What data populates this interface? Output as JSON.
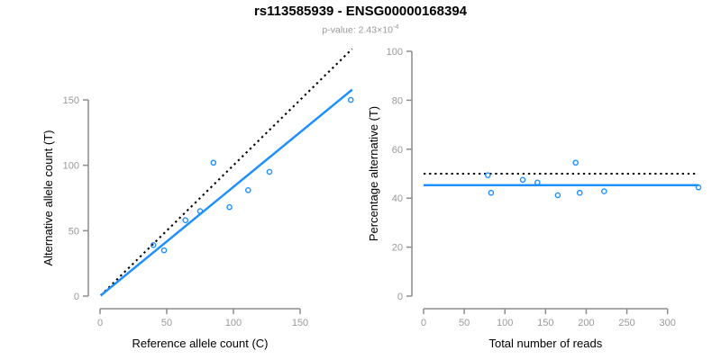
{
  "header": {
    "title": "rs113585939 - ENSG00000168394",
    "subtitle_prefix": "p-value: 2.43×10",
    "subtitle_exponent": "-4"
  },
  "colors": {
    "background": "#FFFFFF",
    "accent_blue": "#1E90FF",
    "dotted_black": "#000000",
    "axis_line": "#8C8C8C",
    "tick_label": "#999999",
    "axis_label": "#000000",
    "subtitle_gray": "#999999"
  },
  "chart_data": [
    {
      "type": "scatter",
      "name": "allele-counts",
      "title": "rs113585939 - ENSG00000168394",
      "subtitle": "p-value: 2.43×10^-4",
      "xlabel": "Reference allele count (C)",
      "ylabel": "Alternative allele count (T)",
      "xticks": [
        0,
        50,
        100,
        150
      ],
      "yticks": [
        0,
        50,
        100,
        150
      ],
      "xlim": [
        0,
        190
      ],
      "ylim": [
        0,
        190
      ],
      "grid": false,
      "points": [
        [
          40,
          39
        ],
        [
          48,
          35
        ],
        [
          64,
          58
        ],
        [
          75,
          65
        ],
        [
          85,
          102
        ],
        [
          97,
          68
        ],
        [
          111,
          81
        ],
        [
          127,
          95
        ],
        [
          188,
          150
        ]
      ],
      "identity_line": {
        "slope": 1,
        "intercept": 0,
        "style": "dotted",
        "color": "#000000"
      },
      "regression_line": {
        "slope": 0.835,
        "intercept": 0,
        "style": "solid",
        "color": "#1E90FF"
      }
    },
    {
      "type": "scatter",
      "name": "percentage-vs-reads",
      "xlabel": "Total number of reads",
      "ylabel": "Percentage alternative (T)",
      "xticks": [
        0,
        50,
        100,
        150,
        200,
        250,
        300
      ],
      "yticks": [
        0,
        20,
        40,
        60,
        80,
        100
      ],
      "xlim": [
        0,
        338
      ],
      "ylim": [
        0,
        100
      ],
      "grid": false,
      "points": [
        [
          79,
          49.4
        ],
        [
          83,
          42.2
        ],
        [
          122,
          47.5
        ],
        [
          140,
          46.4
        ],
        [
          165,
          41.2
        ],
        [
          187,
          54.5
        ],
        [
          192,
          42.2
        ],
        [
          222,
          42.8
        ],
        [
          338,
          44.4
        ]
      ],
      "reference_line": {
        "value": 50,
        "style": "dotted",
        "color": "#000000"
      },
      "mean_line": {
        "value": 45.3,
        "style": "solid",
        "color": "#1E90FF"
      }
    }
  ]
}
